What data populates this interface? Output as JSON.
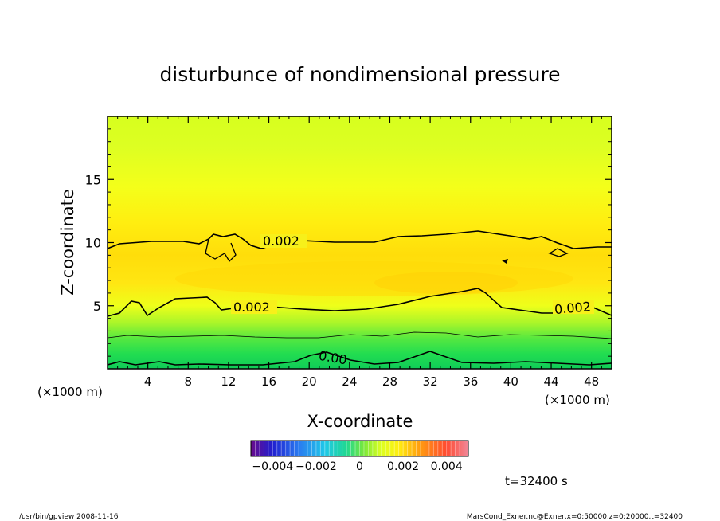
{
  "chart_data": {
    "type": "heatmap",
    "title": "disturbunce of nondimensional pressure",
    "xlabel": "X-coordinate",
    "ylabel": "Z-coordinate",
    "x_unit": "(×1000 m)",
    "y_unit": "(×1000 m)",
    "xlim": [
      0,
      50
    ],
    "ylim": [
      0,
      20
    ],
    "x_ticks": [
      "4",
      "8",
      "12",
      "16",
      "20",
      "24",
      "28",
      "32",
      "36",
      "40",
      "44",
      "48"
    ],
    "y_ticks": [
      "5",
      "10",
      "15"
    ],
    "contour_labels": [
      "0.002",
      "0.002",
      "0.002",
      "0.00"
    ],
    "colorbar": {
      "range": [
        -0.005,
        0.005
      ],
      "tick_labels": [
        "−0.004",
        "−0.002",
        "0",
        "0.002",
        "0.004"
      ]
    },
    "field_bands": [
      {
        "z_range": [
          14,
          20
        ],
        "value": 0.0008
      },
      {
        "z_range": [
          10,
          14
        ],
        "value": 0.0015
      },
      {
        "z_range": [
          5,
          10
        ],
        "value": 0.0025
      },
      {
        "z_range": [
          3,
          5
        ],
        "value": 0.0015
      },
      {
        "z_range": [
          1,
          3
        ],
        "value": 0.0002
      },
      {
        "z_range": [
          0,
          1
        ],
        "value": -0.0003
      }
    ],
    "time_label": "t=32400 s"
  },
  "footer": {
    "left": "/usr/bin/gpview  2008-11-16",
    "right": "MarsCond_Exner.nc@Exner,x=0:50000,z=0:20000,t=32400"
  }
}
